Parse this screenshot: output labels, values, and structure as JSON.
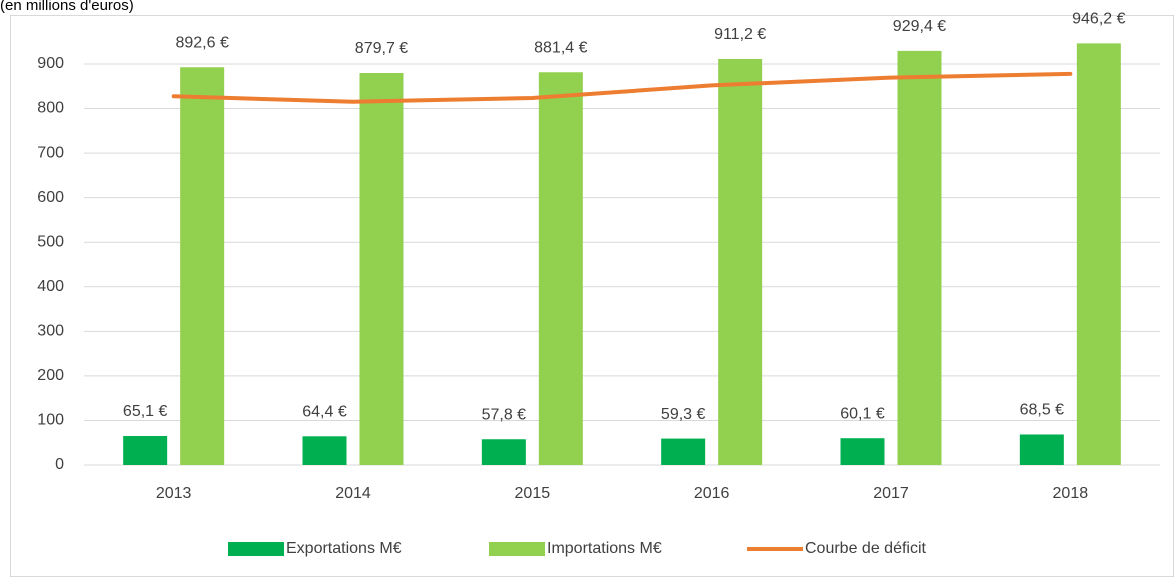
{
  "chart_data": {
    "type": "bar_line",
    "subtitle": "(en millions d'euros)",
    "categories": [
      "2013",
      "2014",
      "2015",
      "2016",
      "2017",
      "2018"
    ],
    "series": [
      {
        "name": "Exportations M€",
        "color": "#00b050",
        "kind": "bar",
        "values": [
          65.1,
          64.4,
          57.8,
          59.3,
          60.1,
          68.5
        ],
        "value_labels": [
          "65,1 €",
          "64,4 €",
          "57,8 €",
          "59,3 €",
          "60,1 €",
          "68,5 €"
        ]
      },
      {
        "name": "Importations M€",
        "color": "#92d050",
        "kind": "bar",
        "values": [
          892.6,
          879.7,
          881.4,
          911.2,
          929.4,
          946.2
        ],
        "value_labels": [
          "892,6 €",
          "879,7 €",
          "881,4 €",
          "911,2 €",
          "929,4 €",
          "946,2 €"
        ]
      },
      {
        "name": "Courbe de déficit",
        "color": "#ed7d31",
        "kind": "line",
        "values": [
          827.5,
          815.3,
          823.6,
          851.9,
          869.3,
          877.7
        ]
      }
    ],
    "ylim": [
      0,
      1000
    ],
    "yticks": [
      0,
      100,
      200,
      300,
      400,
      500,
      600,
      700,
      800,
      900
    ],
    "grid": true,
    "legend": "bottom"
  }
}
